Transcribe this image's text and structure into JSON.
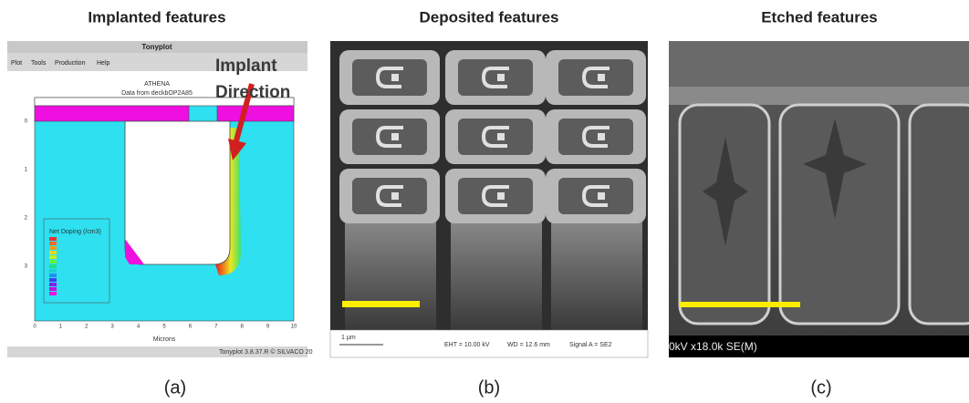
{
  "panels": [
    {
      "title": "Implanted features",
      "caption": "(a)",
      "window_title": "Tonyplot",
      "menu": [
        "Plot",
        "Tools",
        "Production",
        "Help"
      ],
      "plot_title": "ATHENA",
      "plot_subtitle": "Data from deckbOP2A85",
      "annotation": [
        "Implant",
        "Direction"
      ],
      "legend_title": "Net Doping (/cm3)",
      "x_axis_label": "Microns",
      "x_ticks": [
        "0",
        "1",
        "2",
        "3",
        "4",
        "5",
        "6",
        "7",
        "8",
        "9",
        "10"
      ],
      "y_ticks": [
        "0",
        "1",
        "2",
        "3"
      ],
      "status": "Tonyplot 3.8.37.R © SILVACO 20"
    },
    {
      "title": "Deposited features",
      "caption": "(b)",
      "scale_bar": "1 µm",
      "info": [
        "EHT = 10.00 kV",
        "WD = 12.6 mm",
        "Signal A = SE2"
      ]
    },
    {
      "title": "Etched features",
      "caption": "(c)",
      "info": "0kV x18.0k SE(M)"
    }
  ]
}
